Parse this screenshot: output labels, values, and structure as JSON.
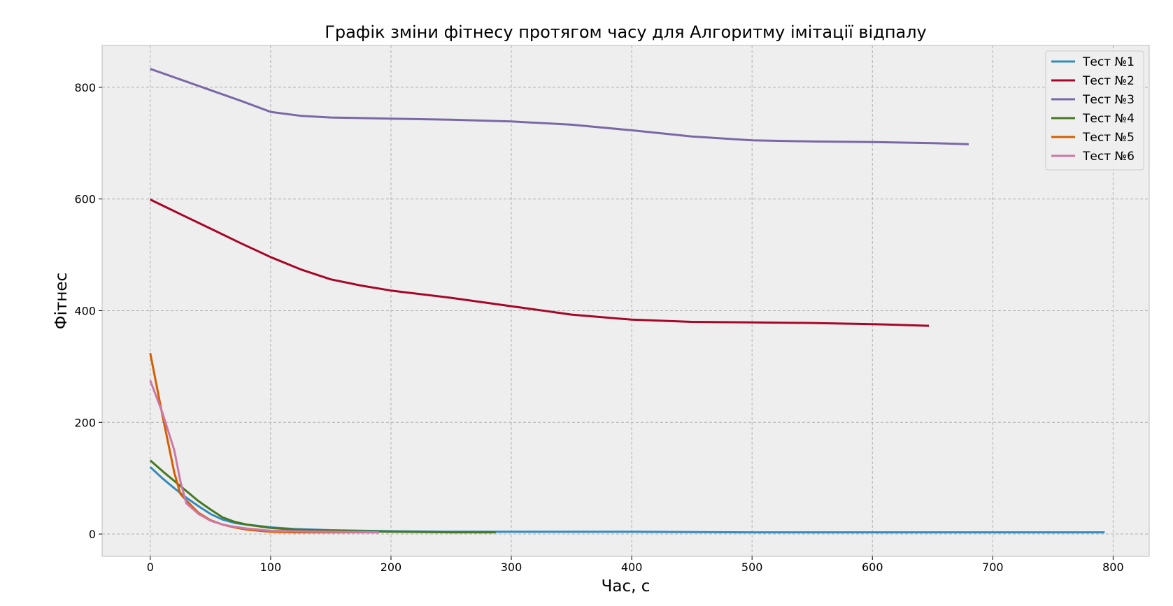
{
  "chart_data": {
    "type": "line",
    "title": "Графік зміни фітнесу протягом часу для Алгоритму імітації відпалу",
    "xlabel": "Час, с",
    "ylabel": "Фітнес",
    "xlim": [
      -40,
      830
    ],
    "ylim": [
      -40,
      875
    ],
    "xticks": [
      0,
      100,
      200,
      300,
      400,
      500,
      600,
      700,
      800
    ],
    "yticks": [
      0,
      200,
      400,
      600,
      800
    ],
    "grid": true,
    "legend_position": "top-right",
    "series": [
      {
        "name": "Тест №1",
        "color": "#348ABD",
        "x": [
          0,
          10,
          20,
          30,
          40,
          50,
          60,
          70,
          80,
          100,
          120,
          150,
          200,
          250,
          300,
          400,
          500,
          600,
          700,
          793
        ],
        "y": [
          120,
          100,
          82,
          65,
          50,
          36,
          26,
          20,
          17,
          12,
          9,
          7,
          5,
          4,
          4,
          4,
          3,
          3,
          3,
          3
        ]
      },
      {
        "name": "Тест №2",
        "color": "#A60628",
        "x": [
          0,
          25,
          50,
          75,
          100,
          125,
          150,
          175,
          200,
          250,
          300,
          350,
          400,
          450,
          500,
          550,
          600,
          647
        ],
        "y": [
          599,
          573,
          547,
          521,
          496,
          474,
          456,
          445,
          436,
          423,
          408,
          393,
          384,
          380,
          379,
          378,
          376,
          373
        ]
      },
      {
        "name": "Тест №3",
        "color": "#7A68A6",
        "x": [
          0,
          25,
          50,
          75,
          100,
          125,
          150,
          200,
          250,
          300,
          350,
          400,
          450,
          500,
          550,
          600,
          650,
          680
        ],
        "y": [
          833,
          814,
          795,
          776,
          756,
          749,
          746,
          744,
          742,
          739,
          733,
          723,
          712,
          705,
          703,
          702,
          700,
          698
        ]
      },
      {
        "name": "Тест №4",
        "color": "#467821",
        "x": [
          0,
          10,
          20,
          30,
          40,
          50,
          60,
          70,
          80,
          100,
          120,
          150,
          200,
          250,
          287
        ],
        "y": [
          132,
          113,
          95,
          77,
          59,
          44,
          30,
          22,
          17,
          11,
          8,
          6,
          4,
          3,
          3
        ]
      },
      {
        "name": "Тест №5",
        "color": "#D55E00",
        "x": [
          0,
          10,
          20,
          25,
          30,
          40,
          50,
          60,
          70,
          80,
          100,
          120,
          150,
          190
        ],
        "y": [
          324,
          214,
          110,
          72,
          60,
          38,
          25,
          17,
          12,
          8,
          4,
          3,
          3,
          3
        ]
      },
      {
        "name": "Тест №6",
        "color": "#CC79A7",
        "x": [
          0,
          10,
          20,
          25,
          30,
          40,
          50,
          60,
          70,
          80,
          100,
          120,
          150,
          190
        ],
        "y": [
          275,
          218,
          150,
          95,
          55,
          36,
          24,
          17,
          13,
          10,
          6,
          5,
          4,
          3
        ]
      }
    ]
  }
}
